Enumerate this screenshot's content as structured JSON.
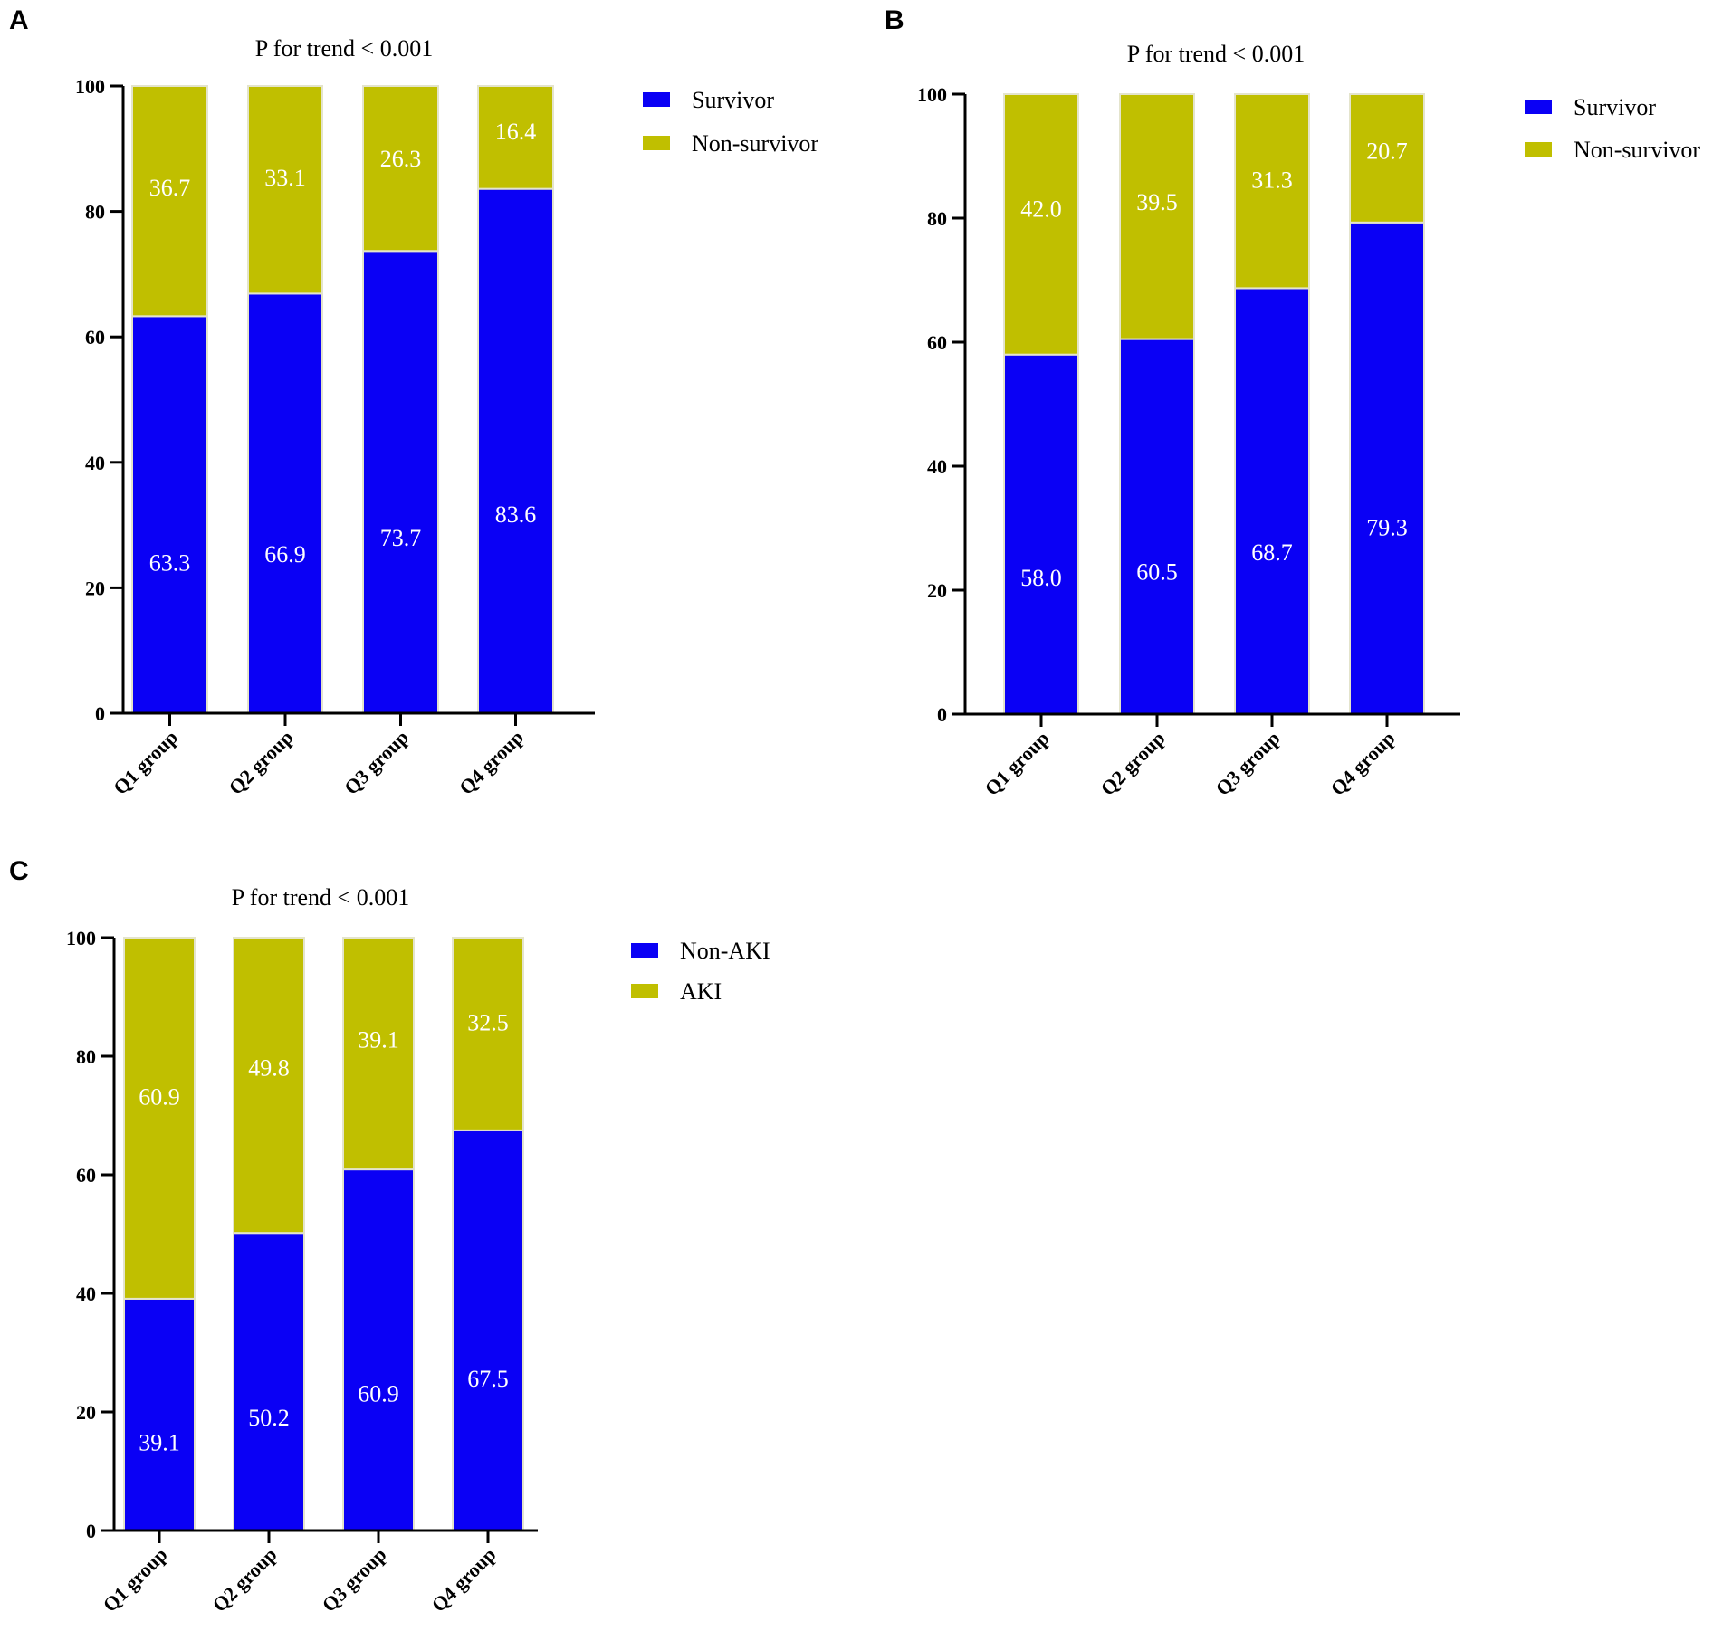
{
  "chart_data": [
    {
      "type": "bar",
      "stacked": true,
      "panel": "A",
      "title": "P for trend < 0.001",
      "categories": [
        "Q1 group",
        "Q2 group",
        "Q3 group",
        "Q4 group"
      ],
      "series": [
        {
          "name": "Survivor",
          "color": "#0a00f5",
          "values": [
            63.3,
            66.9,
            73.7,
            83.6
          ],
          "labels": [
            "63.3",
            "66.9",
            "73.7",
            "83.6"
          ]
        },
        {
          "name": "Non-survivor",
          "color": "#c0bf00",
          "values": [
            36.7,
            33.1,
            26.3,
            16.4
          ],
          "labels": [
            "36.7",
            "33.1",
            "26.3",
            "16.4"
          ]
        }
      ],
      "ylim": [
        0,
        100
      ],
      "yticks": [
        0,
        20,
        40,
        60,
        80,
        100
      ],
      "xlabel": "",
      "ylabel": "",
      "legend": "top-right"
    },
    {
      "type": "bar",
      "stacked": true,
      "panel": "B",
      "title": "P for trend < 0.001",
      "categories": [
        "Q1 group",
        "Q2 group",
        "Q3 group",
        "Q4 group"
      ],
      "series": [
        {
          "name": "Survivor",
          "color": "#0a00f5",
          "values": [
            58.0,
            60.5,
            68.7,
            79.3
          ],
          "labels": [
            "58.0",
            "60.5",
            "68.7",
            "79.3"
          ]
        },
        {
          "name": "Non-survivor",
          "color": "#c0bf00",
          "values": [
            42.0,
            39.5,
            31.3,
            20.7
          ],
          "labels": [
            "42.0",
            "39.5",
            "31.3",
            "20.7"
          ]
        }
      ],
      "ylim": [
        0,
        100
      ],
      "yticks": [
        0,
        20,
        40,
        60,
        80,
        100
      ],
      "xlabel": "",
      "ylabel": "",
      "legend": "top-right"
    },
    {
      "type": "bar",
      "stacked": true,
      "panel": "C",
      "title": "P for trend < 0.001",
      "categories": [
        "Q1 group",
        "Q2 group",
        "Q3 group",
        "Q4 group"
      ],
      "series": [
        {
          "name": "Non-AKI",
          "color": "#0a00f5",
          "values": [
            39.1,
            50.2,
            60.9,
            67.5
          ],
          "labels": [
            "39.1",
            "50.2",
            "60.9",
            "67.5"
          ]
        },
        {
          "name": "AKI",
          "color": "#c0bf00",
          "values": [
            60.9,
            49.8,
            39.1,
            32.5
          ],
          "labels": [
            "60.9",
            "49.8",
            "39.1",
            "32.5"
          ]
        }
      ],
      "ylim": [
        0,
        100
      ],
      "yticks": [
        0,
        20,
        40,
        60,
        80,
        100
      ],
      "xlabel": "",
      "ylabel": "",
      "legend": "top-right"
    }
  ]
}
